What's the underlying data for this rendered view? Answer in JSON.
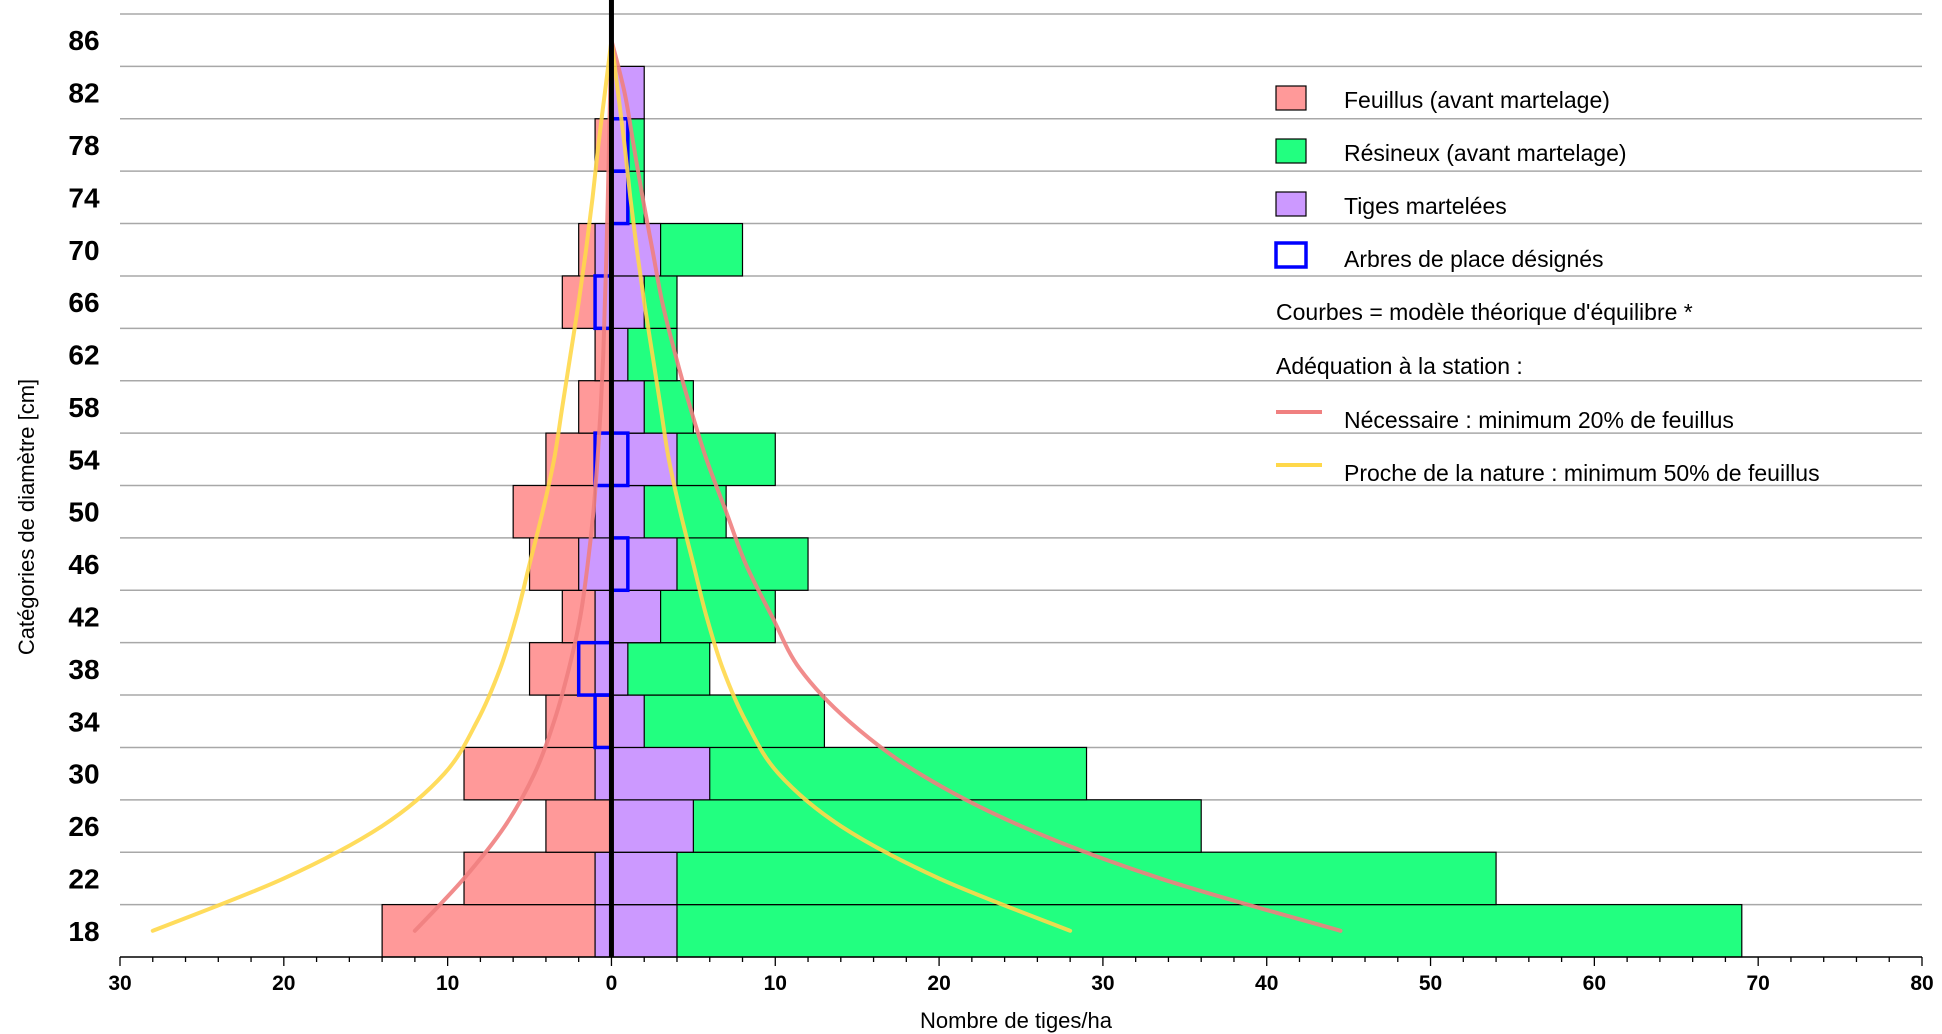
{
  "chart_data": {
    "type": "bar",
    "orientation": "horizontal",
    "xlabel": "Nombre de tiges/ha",
    "ylabel": "Catégories de diamètre [cm]",
    "xlim": [
      -30,
      80
    ],
    "x_ticks": [
      -30,
      -20,
      -10,
      0,
      10,
      20,
      30,
      40,
      50,
      60,
      70,
      80
    ],
    "x_tick_labels": [
      "30",
      "20",
      "10",
      "0",
      "10",
      "20",
      "30",
      "40",
      "50",
      "60",
      "70",
      "80"
    ],
    "categories": [
      "18",
      "22",
      "26",
      "30",
      "34",
      "38",
      "42",
      "46",
      "50",
      "54",
      "58",
      "62",
      "66",
      "70",
      "74",
      "78",
      "82",
      "86"
    ],
    "series": [
      {
        "name": "Feuillus (avant martelage)",
        "side": "left",
        "color": "#ff9999",
        "values": [
          14,
          9,
          4,
          9,
          4,
          5,
          3,
          5,
          6,
          4,
          2,
          1,
          3,
          2,
          0,
          1,
          0,
          0
        ]
      },
      {
        "name": "Résineux (avant martelage)",
        "side": "right",
        "color": "#22ff80",
        "values": [
          69,
          54,
          36,
          29,
          13,
          6,
          10,
          12,
          7,
          10,
          5,
          4,
          4,
          8,
          2,
          2,
          0,
          0
        ]
      },
      {
        "name": "Tiges martelées",
        "color": "#cc99ff",
        "left_values": [
          1,
          1,
          0,
          1,
          0,
          1,
          1,
          2,
          1,
          1,
          0,
          0,
          1,
          1,
          0,
          0,
          0,
          0
        ],
        "right_values": [
          4,
          4,
          5,
          6,
          2,
          1,
          3,
          4,
          2,
          4,
          2,
          1,
          2,
          3,
          1,
          1,
          2,
          0
        ]
      },
      {
        "name": "Arbres de place désignés",
        "type": "outline",
        "color": "#0000ff",
        "left_values": [
          0,
          0,
          0,
          0,
          1,
          2,
          0,
          0,
          0,
          1,
          0,
          0,
          1,
          0,
          0,
          0,
          0,
          0
        ],
        "right_values": [
          0,
          0,
          0,
          0,
          0,
          0,
          0,
          1,
          0,
          1,
          0,
          0,
          0,
          0,
          1,
          1,
          0,
          0
        ]
      }
    ],
    "curves": [
      {
        "name": "Nécessaire : minimum 20% de feuillus",
        "color": "#f08080",
        "left": [
          [
            18,
            12
          ],
          [
            22,
            9
          ],
          [
            26,
            6.5
          ],
          [
            30,
            4.7
          ],
          [
            34,
            3.5
          ],
          [
            38,
            2.6
          ],
          [
            42,
            1.9
          ],
          [
            46,
            1.45
          ],
          [
            50,
            1.1
          ],
          [
            54,
            0.85
          ],
          [
            58,
            0.65
          ],
          [
            62,
            0.5
          ],
          [
            66,
            0.4
          ],
          [
            70,
            0.3
          ],
          [
            74,
            0.22
          ],
          [
            78,
            0.15
          ],
          [
            82,
            0.08
          ],
          [
            86,
            0
          ]
        ],
        "right": [
          [
            18,
            44.5
          ],
          [
            22,
            33.5
          ],
          [
            26,
            25
          ],
          [
            30,
            18.8
          ],
          [
            34,
            14.5
          ],
          [
            38,
            11.5
          ],
          [
            42,
            9.8
          ],
          [
            46,
            8.2
          ],
          [
            50,
            7
          ],
          [
            54,
            5.8
          ],
          [
            58,
            4.8
          ],
          [
            62,
            3.9
          ],
          [
            66,
            3.1
          ],
          [
            70,
            2.5
          ],
          [
            74,
            1.9
          ],
          [
            78,
            1.35
          ],
          [
            82,
            0.8
          ],
          [
            86,
            0
          ]
        ]
      },
      {
        "name": "Proche de la nature : minimum 50% de feuillus",
        "color": "#ffd84a",
        "left": [
          [
            18,
            28
          ],
          [
            22,
            20
          ],
          [
            26,
            14
          ],
          [
            30,
            10.2
          ],
          [
            34,
            8.2
          ],
          [
            38,
            6.8
          ],
          [
            42,
            5.8
          ],
          [
            46,
            5
          ],
          [
            50,
            4.2
          ],
          [
            54,
            3.5
          ],
          [
            58,
            3
          ],
          [
            62,
            2.5
          ],
          [
            66,
            2
          ],
          [
            70,
            1.55
          ],
          [
            74,
            1.15
          ],
          [
            78,
            0.8
          ],
          [
            82,
            0.4
          ],
          [
            86,
            0
          ]
        ],
        "right": [
          [
            18,
            28
          ],
          [
            22,
            20
          ],
          [
            26,
            14
          ],
          [
            30,
            10.2
          ],
          [
            34,
            8.2
          ],
          [
            38,
            6.8
          ],
          [
            42,
            5.8
          ],
          [
            46,
            5
          ],
          [
            50,
            4.2
          ],
          [
            54,
            3.5
          ],
          [
            58,
            3
          ],
          [
            62,
            2.5
          ],
          [
            66,
            2
          ],
          [
            70,
            1.55
          ],
          [
            74,
            1.15
          ],
          [
            78,
            0.8
          ],
          [
            82,
            0.4
          ],
          [
            86,
            0
          ]
        ]
      }
    ],
    "legend": {
      "placement": "top-right",
      "items": [
        {
          "label": "Feuillus (avant martelage)",
          "color": "#ff9999",
          "kind": "swatch"
        },
        {
          "label": "Résineux (avant martelage)",
          "color": "#22ff80",
          "kind": "swatch"
        },
        {
          "label": "Tiges martelées",
          "color": "#cc99ff",
          "kind": "swatch"
        },
        {
          "label": "Arbres de place désignés",
          "color": "#0000ff",
          "kind": "outline"
        },
        {
          "label": "Courbes = modèle théorique d'équilibre *",
          "kind": "text"
        },
        {
          "label": "Adéquation à la station :",
          "kind": "text"
        },
        {
          "label": "Nécessaire : minimum 20% de feuillus",
          "color": "#f08080",
          "kind": "line"
        },
        {
          "label": "Proche de la nature : minimum 50% de feuillus",
          "color": "#ffd84a",
          "kind": "line"
        }
      ]
    },
    "grid": {
      "horizontal": true,
      "vertical": false
    },
    "zero_line": true
  }
}
